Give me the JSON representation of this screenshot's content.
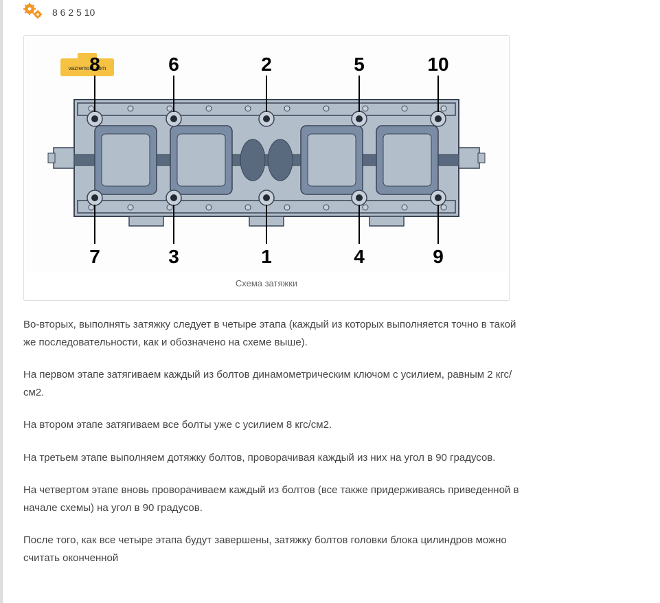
{
  "header": {
    "top_text": "8 6 2 5 10"
  },
  "figure": {
    "caption": "Схема затяжки",
    "top_labels": [
      "8",
      "6",
      "2",
      "5",
      "10"
    ],
    "bottom_labels": [
      "7",
      "3",
      "1",
      "4",
      "9"
    ],
    "watermark": "vazremont.com",
    "colors": {
      "head_fill": "#b3becb",
      "head_stroke": "#3a4456",
      "cavity_fill": "#7b8da5",
      "shaft_fill": "#5a6a7e",
      "bolt_fill": "#c8d0da",
      "bolt_hole_fill": "#222a36",
      "line_color": "#000000",
      "label_color": "#000000",
      "bg": "#fdfdfd",
      "watermark_bg": "#f6c243",
      "watermark_text": "#222"
    },
    "label_fontsize": 28
  },
  "paragraphs": {
    "p1": "Во-вторых, выполнять затяжку следует в четыре этапа (каждый из которых выполняется точно в такой же последовательности, как и обозначено на схеме выше).",
    "p2": "На первом этапе затягиваем каждый из болтов динамометрическим ключом с усилием, равным 2 кгс/см2.",
    "p3": "На втором этапе затягиваем все болты уже с усилием 8 кгс/см2.",
    "p4": "На третьем этапе выполняем дотяжку болтов, проворачивая каждый из них на угол в 90 градусов.",
    "p5": "На четвертом этапе вновь проворачиваем каждый из болтов (все также придерживаясь приведенной в начале схемы) на угол в 90 градусов.",
    "p6": "После того, как все четыре этапа будут завершены, затяжку болтов головки блока цилиндров можно считать оконченной"
  }
}
